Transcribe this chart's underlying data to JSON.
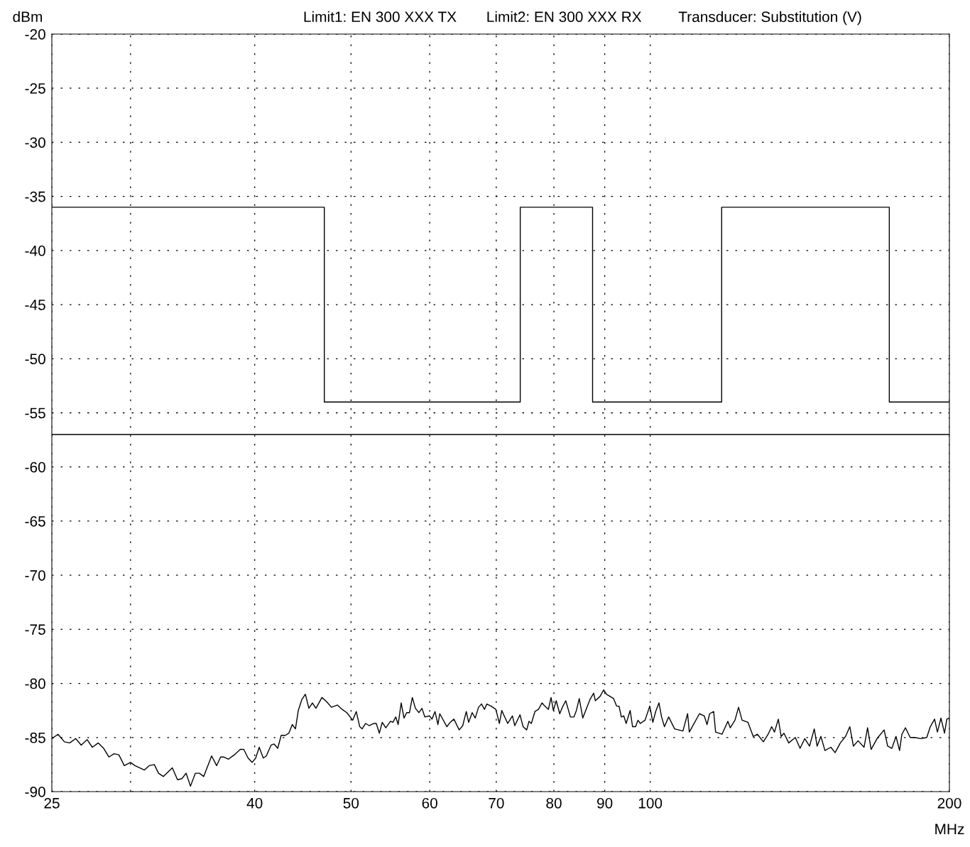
{
  "chart_data": {
    "type": "line",
    "xlabel": "MHz",
    "ylabel": "dBm",
    "annotations": [
      "Limit1: EN 300 XXX TX",
      "Limit2: EN 300 XXX RX",
      "Transducer: Substitution (V)"
    ],
    "log": "x",
    "grid": true,
    "marker": "none",
    "line_style": "solid",
    "xlim": [
      25,
      200
    ],
    "xticks": [
      25,
      {
        "value": 30,
        "label": null
      },
      40,
      50,
      60,
      70,
      80,
      90,
      100,
      200
    ],
    "ylim": [
      -90,
      -20
    ],
    "yticks": [
      -20,
      -25,
      -30,
      -35,
      -40,
      -45,
      -50,
      -55,
      -60,
      -65,
      -70,
      -75,
      -80,
      -85,
      -90
    ],
    "series": [
      {
        "color": "#000000",
        "x": [
          25,
          47,
          47,
          74,
          74,
          87.5,
          87.5,
          118,
          118,
          174,
          174,
          200
        ],
        "values": [
          -36,
          -36,
          -54,
          -54,
          -36,
          -36,
          -54,
          -54,
          -36,
          -36,
          -54,
          -54
        ]
      },
      {
        "color": "#000000",
        "x": [
          25,
          200
        ],
        "values": [
          -57,
          -57
        ]
      },
      {
        "color": "#000000",
        "x": [
          25.0,
          25.36,
          25.74,
          26.06,
          26.42,
          26.76,
          27.13,
          27.46,
          27.84,
          28.19,
          28.53,
          28.88,
          29.2,
          29.57,
          30.0,
          30.31,
          30.98,
          31.32,
          31.7,
          32.01,
          32.37,
          33.05,
          33.45,
          33.79,
          34.12,
          34.47,
          34.86,
          35.19,
          35.54,
          36.2,
          36.62,
          36.96,
          37.22,
          37.64,
          38.16,
          38.68,
          39.0,
          39.39,
          39.76,
          40.09,
          40.42,
          40.8,
          41.09,
          41.55,
          41.84,
          42.19,
          42.53,
          42.94,
          43.29,
          43.64,
          43.96,
          44.25,
          44.61,
          44.98,
          45.35,
          45.72,
          46.1,
          46.74,
          47.26,
          47.78,
          48.44,
          48.98,
          49.51,
          50.19,
          50.61,
          51.02,
          51.3,
          51.72,
          52.15,
          52.73,
          53.01,
          53.39,
          53.75,
          54.19,
          54.79,
          55.09,
          55.46,
          55.77,
          56.16,
          56.53,
          56.88,
          57.25,
          57.63,
          58.04,
          58.52,
          58.93,
          59.32,
          59.98,
          60.31,
          60.74,
          61.15,
          61.41,
          62.43,
          62.91,
          63.46,
          64.24,
          64.77,
          65.3,
          65.66,
          66.2,
          66.67,
          67.19,
          67.66,
          68.11,
          68.49,
          69.17,
          69.93,
          70.51,
          70.9,
          71.88,
          72.67,
          73.07,
          73.96,
          74.49,
          75.11,
          75.52,
          75.93,
          76.56,
          77.19,
          77.83,
          78.34,
          78.99,
          79.47,
          79.9,
          80.43,
          81.09,
          81.69,
          82.23,
          83.12,
          83.81,
          84.28,
          84.84,
          85.54,
          86.96,
          87.72,
          88.06,
          89.03,
          89.77,
          90.36,
          91.86,
          92.51,
          93.03,
          93.54,
          94.05,
          94.58,
          95.46,
          95.99,
          96.67,
          97.2,
          97.74,
          98.81,
          99.9,
          100.61,
          101.27,
          102.05,
          102.67,
          103.35,
          104.37,
          105.81,
          107.87,
          109.05,
          109.48,
          112.08,
          113.33,
          114.07,
          114.76,
          115.84,
          116.36,
          118.09,
          119.71,
          120.37,
          121.7,
          122.71,
          123.72,
          125.42,
          126.95,
          128.2,
          129.97,
          131.41,
          132.5,
          133.37,
          134.55,
          135.44,
          136.33,
          137.84,
          139.96,
          141.51,
          143.06,
          144.64,
          146.24,
          147.21,
          148.5,
          149.9,
          151.97,
          153.47,
          155.34,
          157.23,
          158.8,
          160.11,
          161.86,
          164.11,
          165.46,
          166.83,
          169.13,
          171.92,
          173.35,
          175.06,
          176.72,
          178.19,
          179.15,
          180.63,
          182.63,
          184.63,
          187.2,
          189.78,
          191.34,
          193.24,
          194.52,
          196.12,
          197.74,
          198.83,
          200.0
        ],
        "values": [
          -85.1,
          -84.7,
          -85.4,
          -85.5,
          -85.1,
          -85.7,
          -85.2,
          -85.9,
          -85.5,
          -86.0,
          -86.8,
          -86.5,
          -86.6,
          -87.6,
          -87.3,
          -87.6,
          -88.0,
          -87.6,
          -87.5,
          -88.3,
          -88.6,
          -87.8,
          -88.9,
          -88.8,
          -88.3,
          -89.5,
          -88.3,
          -88.3,
          -88.6,
          -86.7,
          -87.6,
          -86.8,
          -86.8,
          -87.0,
          -86.6,
          -86.1,
          -86.1,
          -86.9,
          -87.3,
          -86.9,
          -85.9,
          -86.9,
          -86.7,
          -85.7,
          -85.6,
          -86.0,
          -84.8,
          -84.8,
          -84.6,
          -83.8,
          -84.2,
          -82.5,
          -81.5,
          -81.0,
          -82.3,
          -81.8,
          -82.3,
          -81.3,
          -81.7,
          -82.2,
          -82.0,
          -82.4,
          -82.7,
          -83.4,
          -82.6,
          -84.0,
          -84.2,
          -83.7,
          -83.9,
          -83.7,
          -83.7,
          -84.6,
          -83.6,
          -84.1,
          -83.5,
          -83.6,
          -83.1,
          -83.8,
          -81.8,
          -83.2,
          -82.7,
          -82.7,
          -81.3,
          -82.3,
          -82.7,
          -82.3,
          -83.1,
          -83.0,
          -83.3,
          -82.6,
          -83.8,
          -82.8,
          -84.0,
          -83.6,
          -83.3,
          -84.3,
          -83.9,
          -82.6,
          -83.6,
          -82.7,
          -83.2,
          -82.2,
          -81.9,
          -82.4,
          -81.9,
          -82.1,
          -82.4,
          -83.7,
          -82.5,
          -83.7,
          -83.0,
          -83.9,
          -82.9,
          -84.0,
          -84.3,
          -83.5,
          -83.7,
          -82.6,
          -82.4,
          -81.8,
          -82.1,
          -82.4,
          -81.3,
          -82.5,
          -81.6,
          -82.8,
          -82.1,
          -81.6,
          -83.1,
          -83.1,
          -82.5,
          -81.4,
          -83.2,
          -81.5,
          -80.9,
          -81.6,
          -81.2,
          -80.6,
          -81.0,
          -81.4,
          -82.1,
          -82.1,
          -83.1,
          -83.0,
          -83.7,
          -82.5,
          -84.0,
          -84.0,
          -83.4,
          -83.7,
          -83.4,
          -82.1,
          -83.6,
          -82.6,
          -81.8,
          -83.1,
          -84.0,
          -83.1,
          -84.2,
          -84.4,
          -82.8,
          -84.5,
          -82.8,
          -83.0,
          -83.8,
          -82.8,
          -82.6,
          -84.5,
          -84.7,
          -83.5,
          -84.1,
          -83.4,
          -82.2,
          -83.4,
          -83.6,
          -84.9,
          -84.7,
          -85.4,
          -84.7,
          -84.0,
          -84.5,
          -83.3,
          -84.9,
          -84.6,
          -85.5,
          -85.0,
          -86.0,
          -85.1,
          -85.8,
          -84.2,
          -85.8,
          -84.9,
          -86.2,
          -85.9,
          -86.4,
          -85.5,
          -84.9,
          -84.0,
          -85.8,
          -85.3,
          -85.9,
          -84.1,
          -86.1,
          -85.1,
          -84.3,
          -85.8,
          -86.0,
          -84.9,
          -86.2,
          -84.7,
          -84.1,
          -85.0,
          -85.0,
          -85.1,
          -85.0,
          -84.0,
          -83.3,
          -84.5,
          -83.2,
          -84.6,
          -83.3,
          -83.2
        ]
      }
    ]
  }
}
